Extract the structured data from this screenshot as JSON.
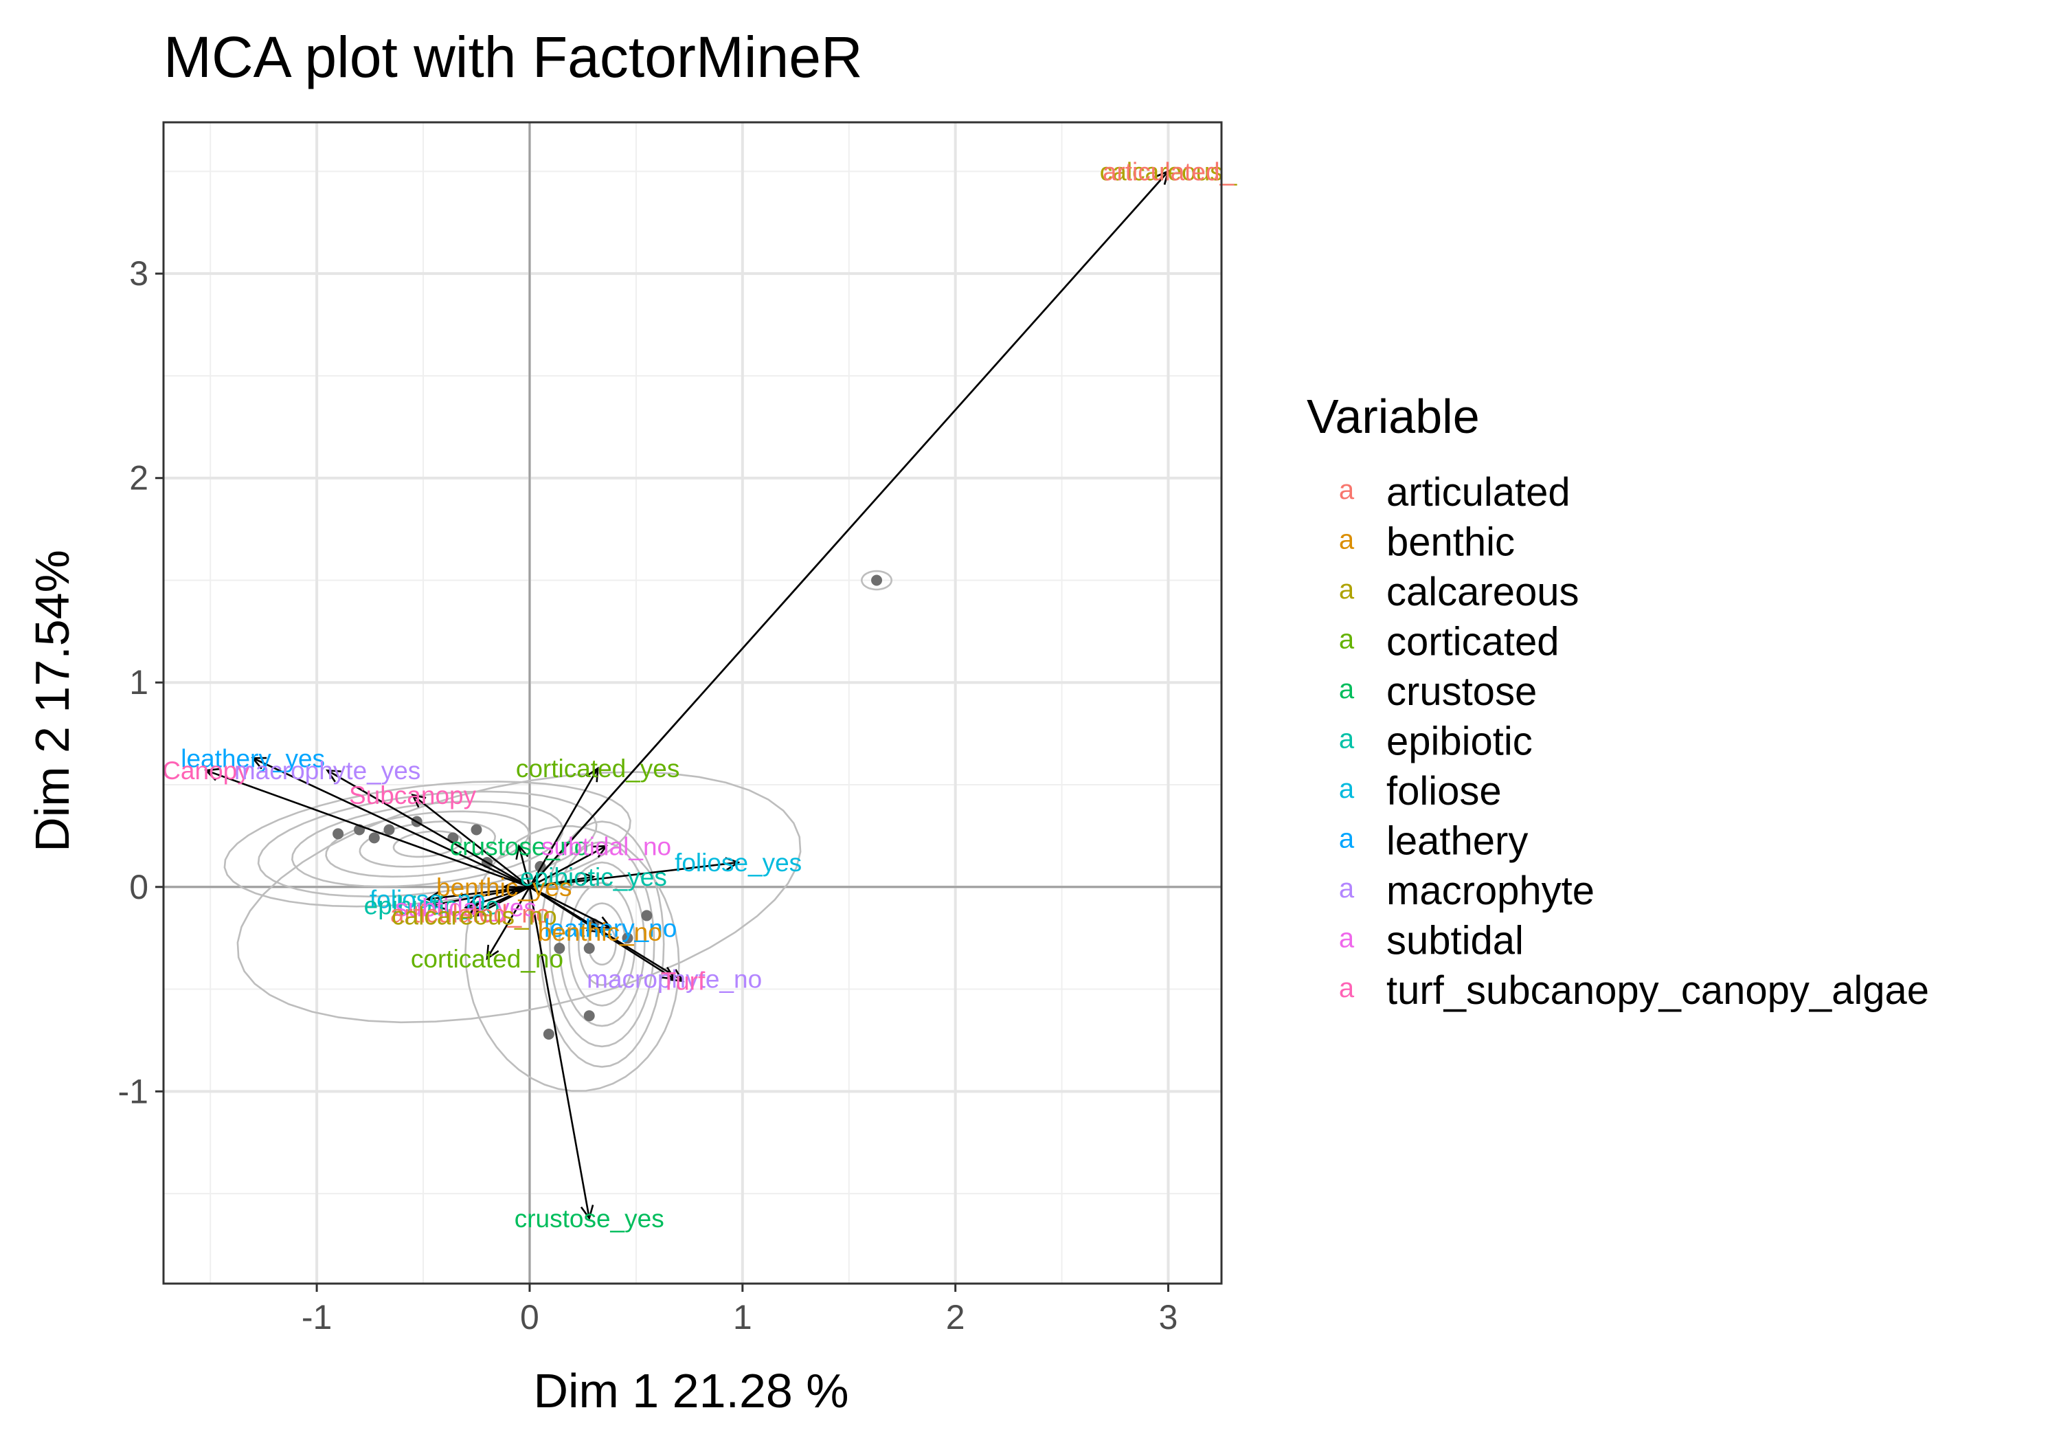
{
  "chart_data": {
    "type": "scatter",
    "title": "MCA plot with FactorMineR",
    "xlabel": "Dim 1 21.28 %",
    "ylabel": "Dim 2 17.54%",
    "xlim": [
      -1.72,
      3.25
    ],
    "ylim": [
      -1.94,
      3.74
    ],
    "x_ticks": [
      -1,
      0,
      1,
      2,
      3
    ],
    "y_ticks": [
      -1,
      0,
      1,
      2,
      3
    ],
    "grid": true,
    "legend": {
      "title": "Variable",
      "position": "right",
      "key_glyph": "a",
      "items": [
        {
          "name": "articulated",
          "color": "#F8766D"
        },
        {
          "name": "benthic",
          "color": "#DB8E00"
        },
        {
          "name": "calcareous",
          "color": "#AEA200"
        },
        {
          "name": "corticated",
          "color": "#64B200"
        },
        {
          "name": "crustose",
          "color": "#00BD5C"
        },
        {
          "name": "epibiotic",
          "color": "#00C1A7"
        },
        {
          "name": "foliose",
          "color": "#00BADE"
        },
        {
          "name": "leathery",
          "color": "#00A6FF"
        },
        {
          "name": "macrophyte",
          "color": "#B385FF"
        },
        {
          "name": "subtidal",
          "color": "#EF67EB"
        },
        {
          "name": "turf_subcanopy_canopy_algae",
          "color": "#FF63B6"
        }
      ]
    },
    "variables": [
      {
        "label": "calcareous_",
        "x": 3.0,
        "y": 3.5,
        "group": "calcareous"
      },
      {
        "label": "articulated_",
        "x": 3.0,
        "y": 3.5,
        "group": "articulated"
      },
      {
        "label": "leathery_yes",
        "x": -1.3,
        "y": 0.63,
        "group": "leathery"
      },
      {
        "label": "Canopy",
        "x": -1.52,
        "y": 0.57,
        "group": "turf_subcanopy_canopy_algae"
      },
      {
        "label": "macrophyte_yes",
        "x": -0.95,
        "y": 0.57,
        "group": "macrophyte"
      },
      {
        "label": "Subcanopy",
        "x": -0.55,
        "y": 0.45,
        "group": "turf_subcanopy_canopy_algae"
      },
      {
        "label": "corticated_yes",
        "x": 0.32,
        "y": 0.58,
        "group": "corticated"
      },
      {
        "label": "crustose_no",
        "x": -0.05,
        "y": 0.2,
        "group": "crustose"
      },
      {
        "label": "subtidal_no",
        "x": 0.36,
        "y": 0.2,
        "group": "subtidal"
      },
      {
        "label": "foliose_yes",
        "x": 0.98,
        "y": 0.12,
        "group": "foliose"
      },
      {
        "label": "epibiotic_yes",
        "x": 0.3,
        "y": 0.05,
        "group": "epibiotic"
      },
      {
        "label": "benthic_yes",
        "x": -0.12,
        "y": 0.0,
        "group": "benthic"
      },
      {
        "label": "foliose_no",
        "x": -0.48,
        "y": -0.06,
        "group": "foliose"
      },
      {
        "label": "epibiotic_no",
        "x": -0.46,
        "y": -0.09,
        "group": "epibiotic"
      },
      {
        "label": "subtidal_yes",
        "x": -0.3,
        "y": -0.1,
        "group": "subtidal"
      },
      {
        "label": "articulated_no",
        "x": -0.28,
        "y": -0.13,
        "group": "articulated"
      },
      {
        "label": "calcareous_no",
        "x": -0.26,
        "y": -0.14,
        "group": "calcareous"
      },
      {
        "label": "leathery_no",
        "x": 0.38,
        "y": -0.2,
        "group": "leathery"
      },
      {
        "label": "benthic_no",
        "x": 0.33,
        "y": -0.22,
        "group": "benthic"
      },
      {
        "label": "corticated_no",
        "x": -0.2,
        "y": -0.35,
        "group": "corticated"
      },
      {
        "label": "macrophyte_no",
        "x": 0.68,
        "y": -0.45,
        "group": "macrophyte"
      },
      {
        "label": "Turf",
        "x": 0.72,
        "y": -0.46,
        "group": "turf_subcanopy_canopy_algae"
      },
      {
        "label": "crustose_yes",
        "x": 0.28,
        "y": -1.62,
        "group": "crustose"
      }
    ],
    "individuals": [
      {
        "x": 1.63,
        "y": 1.5
      },
      {
        "x": -0.9,
        "y": 0.26
      },
      {
        "x": -0.8,
        "y": 0.28
      },
      {
        "x": -0.73,
        "y": 0.24
      },
      {
        "x": -0.66,
        "y": 0.28
      },
      {
        "x": -0.53,
        "y": 0.32
      },
      {
        "x": -0.36,
        "y": 0.24
      },
      {
        "x": -0.25,
        "y": 0.28
      },
      {
        "x": -0.2,
        "y": 0.12
      },
      {
        "x": 0.05,
        "y": 0.1
      },
      {
        "x": 0.55,
        "y": -0.14
      },
      {
        "x": 0.3,
        "y": -0.18
      },
      {
        "x": 0.46,
        "y": -0.25
      },
      {
        "x": 0.14,
        "y": -0.3
      },
      {
        "x": 0.28,
        "y": -0.3
      },
      {
        "x": 0.28,
        "y": -0.63
      },
      {
        "x": 0.09,
        "y": -0.72
      }
    ]
  }
}
